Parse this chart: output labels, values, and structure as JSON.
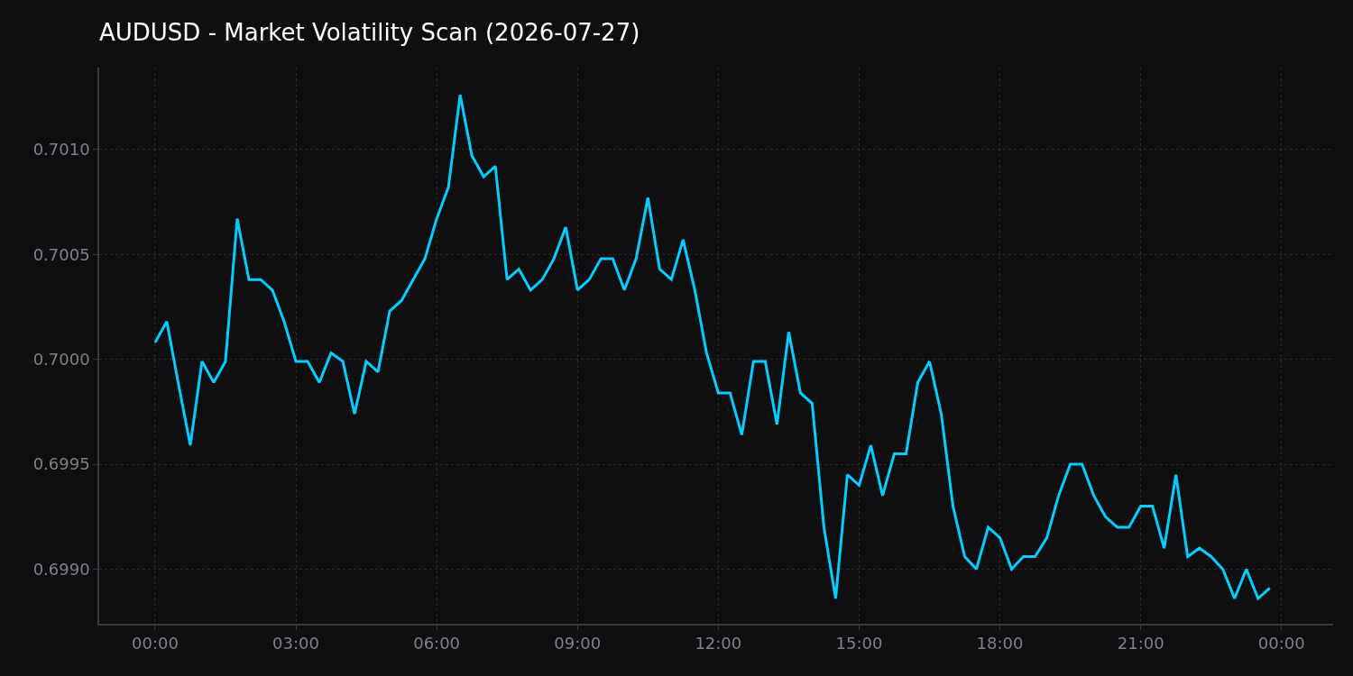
{
  "chart_data": {
    "type": "line",
    "title": "AUDUSD - Market Volatility Scan (2026-07-27)",
    "x": [
      0,
      0.25,
      0.5,
      0.75,
      1,
      1.25,
      1.5,
      1.75,
      2,
      2.25,
      2.5,
      2.75,
      3,
      3.25,
      3.5,
      3.75,
      4,
      4.25,
      4.5,
      4.75,
      5,
      5.25,
      5.5,
      5.75,
      6,
      6.25,
      6.5,
      6.75,
      7,
      7.25,
      7.5,
      7.75,
      8,
      8.25,
      8.5,
      8.75,
      9,
      9.25,
      9.5,
      9.75,
      10,
      10.25,
      10.5,
      10.75,
      11,
      11.25,
      11.5,
      11.75,
      12,
      12.25,
      12.5,
      12.75,
      13,
      13.25,
      13.5,
      13.75,
      14,
      14.25,
      14.5,
      14.75,
      15,
      15.25,
      15.5,
      15.75,
      16,
      16.25,
      16.5,
      16.75,
      17,
      17.25,
      17.5,
      17.75,
      18,
      18.25,
      18.5,
      18.75,
      19,
      19.25,
      19.5,
      19.75,
      20,
      20.25,
      20.5,
      20.75,
      21,
      21.25,
      21.5,
      21.75,
      22,
      22.25,
      22.5,
      22.75,
      23,
      23.25,
      23.5,
      23.75
    ],
    "series": [
      {
        "color": "#00cfff",
        "values": [
          0.70008,
          0.70018,
          0.69988,
          0.69959,
          0.69999,
          0.69989,
          0.69999,
          0.70067,
          0.70038,
          0.70038,
          0.70033,
          0.70018,
          0.69999,
          0.69999,
          0.69989,
          0.70003,
          0.69999,
          0.69974,
          0.69999,
          0.69994,
          0.70023,
          0.70028,
          0.70038,
          0.70048,
          0.70067,
          0.70082,
          0.70126,
          0.70097,
          0.70087,
          0.70092,
          0.70038,
          0.70043,
          0.70033,
          0.70038,
          0.70048,
          0.70063,
          0.70033,
          0.70038,
          0.70048,
          0.70048,
          0.70033,
          0.70048,
          0.70077,
          0.70043,
          0.70038,
          0.70057,
          0.70033,
          0.70003,
          0.69984,
          0.69984,
          0.69964,
          0.69999,
          0.69999,
          0.69969,
          0.70013,
          0.69984,
          0.69979,
          0.6992,
          0.69886,
          0.69945,
          0.6994,
          0.69959,
          0.69935,
          0.69955,
          0.69955,
          0.69989,
          0.69999,
          0.69974,
          0.6993,
          0.69906,
          0.699,
          0.6992,
          0.69915,
          0.699,
          0.69906,
          0.69906,
          0.69915,
          0.69935,
          0.6995,
          0.6995,
          0.69935,
          0.69925,
          0.6992,
          0.6992,
          0.6993,
          0.6993,
          0.6991,
          0.69945,
          0.69906,
          0.6991,
          0.69906,
          0.699,
          0.69886,
          0.699,
          0.69886,
          0.69891
        ]
      }
    ],
    "xlim": [
      -1.19,
      25.1
    ],
    "xticks": [
      {
        "value": 0,
        "label": "00:00"
      },
      {
        "value": 3,
        "label": "03:00"
      },
      {
        "value": 6,
        "label": "06:00"
      },
      {
        "value": 9,
        "label": "09:00"
      },
      {
        "value": 12,
        "label": "12:00"
      },
      {
        "value": 15,
        "label": "15:00"
      },
      {
        "value": 18,
        "label": "18:00"
      },
      {
        "value": 21,
        "label": "21:00"
      },
      {
        "value": 24,
        "label": "00:00"
      }
    ],
    "ylim": [
      0.69874,
      0.70139
    ],
    "yticks": [
      {
        "value": 0.699,
        "label": "0.6990"
      },
      {
        "value": 0.6995,
        "label": "0.6995"
      },
      {
        "value": 0.7,
        "label": "0.7000"
      },
      {
        "value": 0.7005,
        "label": "0.7005"
      },
      {
        "value": 0.701,
        "label": "0.7010"
      }
    ],
    "grid": true,
    "line_style": "solid",
    "marker": "none"
  }
}
